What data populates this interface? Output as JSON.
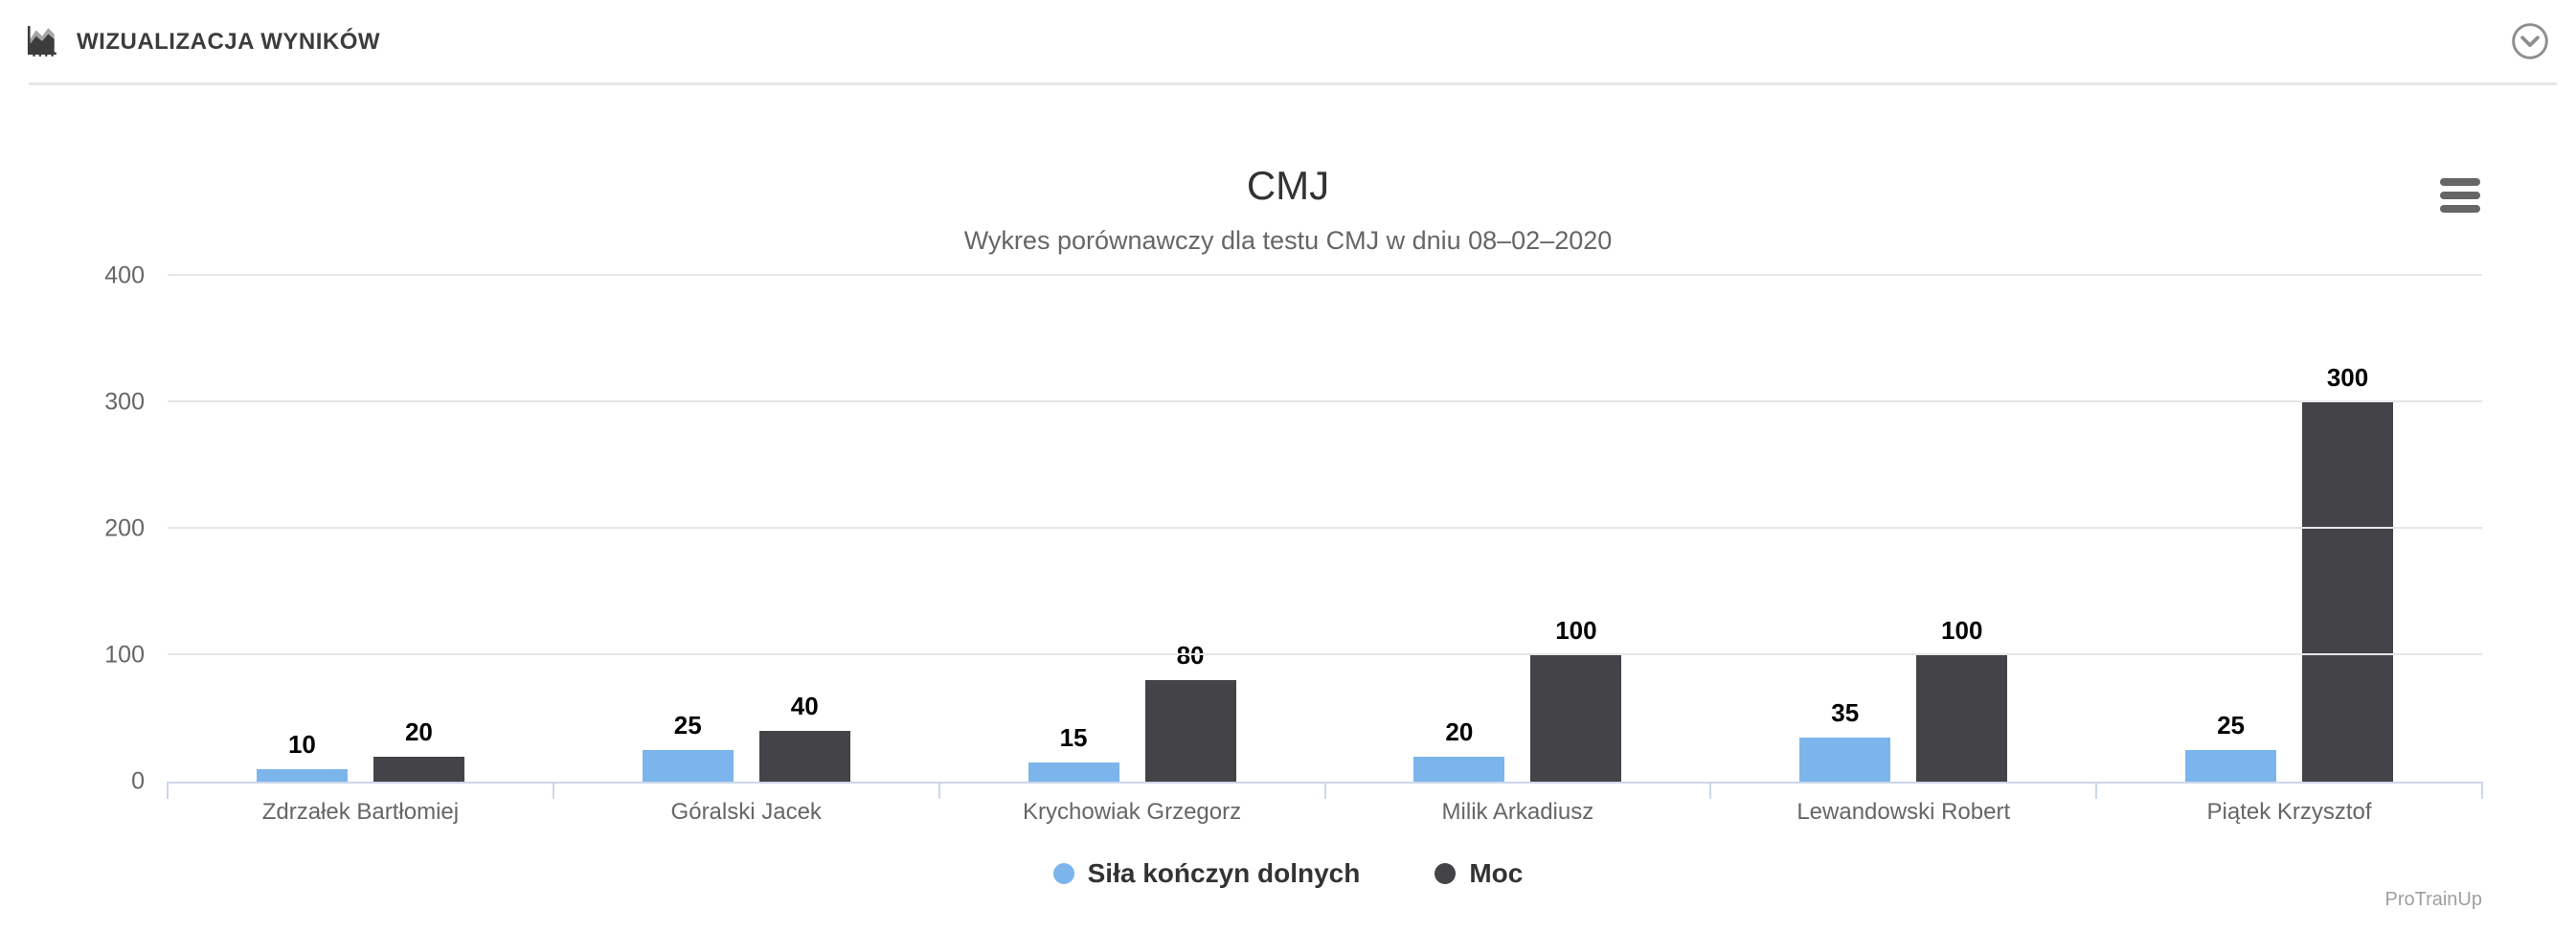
{
  "header": {
    "title": "WIZUALIZACJA WYNIKÓW",
    "icon": "area-chart-icon",
    "collapse_button_icon": "chevron-down-circle-icon"
  },
  "toolbar": {
    "context_menu_icon": "hamburger-menu-icon"
  },
  "chart_data": {
    "type": "bar",
    "title": "CMJ",
    "subtitle": "Wykres porównawczy dla testu CMJ w dniu 08–02–2020",
    "categories": [
      "Zdrzałek Bartłomiej",
      "Góralski Jacek",
      "Krychowiak Grzegorz",
      "Milik Arkadiusz",
      "Lewandowski Robert",
      "Piątek Krzysztof"
    ],
    "series": [
      {
        "name": "Siła kończyn dolnych",
        "color": "#7cb5ec",
        "values": [
          10,
          25,
          15,
          20,
          35,
          25
        ]
      },
      {
        "name": "Moc",
        "color": "#434348",
        "values": [
          20,
          40,
          80,
          100,
          100,
          300
        ]
      }
    ],
    "ylim": [
      0,
      400
    ],
    "yticks": [
      0,
      100,
      200,
      300,
      400
    ],
    "grid": true,
    "legend_position": "bottom",
    "xlabel": "",
    "ylabel": ""
  },
  "credits": "ProTrainUp",
  "colors": {
    "series_blue": "#7cb5ec",
    "series_dark": "#434348",
    "axis_line": "#ccd6eb",
    "gridline": "#e6e6e6",
    "axis_label_text": "#666666",
    "title_text": "#333333",
    "subtitle_text": "#666666",
    "data_label_text": "#000000",
    "legend_text": "#333333",
    "header_text": "#3c3c3c",
    "credits_text": "#a0a0a0"
  }
}
